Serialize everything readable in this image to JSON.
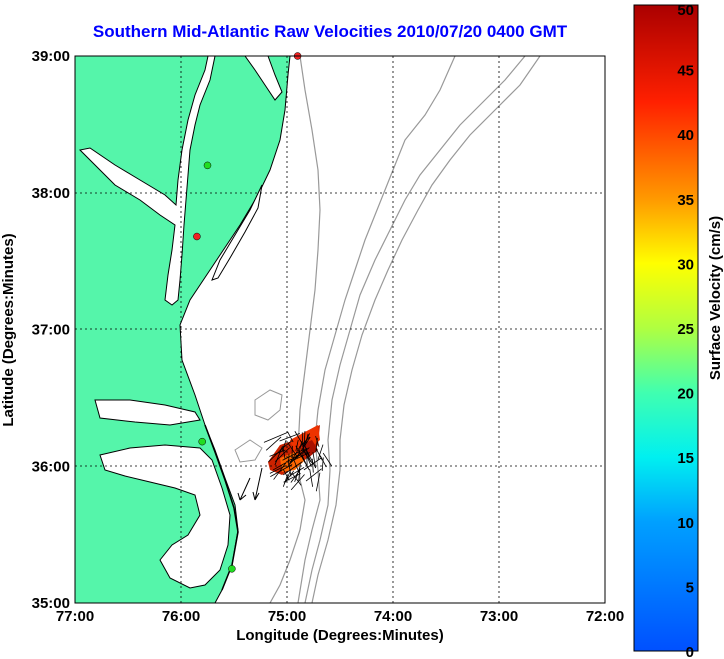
{
  "title": "Southern Mid-Atlantic Raw Velocities 2010/07/20 0400 GMT",
  "xlabel": "Longitude (Degrees:Minutes)",
  "ylabel": "Latitude (Degrees:Minutes)",
  "colorbar_label": "Surface Velocity (cm/s)",
  "x_ticks": [
    "77:00",
    "76:00",
    "75:00",
    "74:00",
    "73:00",
    "72:00"
  ],
  "y_ticks": [
    "39:00",
    "38:00",
    "37:00",
    "36:00",
    "35:00"
  ],
  "colorbar_ticks": [
    "50",
    "45",
    "40",
    "35",
    "30",
    "25",
    "20",
    "15",
    "10",
    "5",
    "0"
  ],
  "colors": {
    "land": "#55f5aa",
    "title": "#0000ff",
    "bathymetry": "#999999",
    "station_active": "#22dd22",
    "station_alert": "#ee2222"
  },
  "chart_data": {
    "type": "map",
    "xlim": [
      -77,
      -72
    ],
    "ylim": [
      35,
      39
    ],
    "colorbar_range": [
      0,
      50
    ],
    "grid": true,
    "stations": [
      {
        "lon": -74.9,
        "lat": 39.0,
        "status": "alert"
      },
      {
        "lon": -75.75,
        "lat": 38.2,
        "status": "active"
      },
      {
        "lon": -75.85,
        "lat": 37.68,
        "status": "alert"
      },
      {
        "lon": -75.8,
        "lat": 36.18,
        "status": "active"
      },
      {
        "lon": -75.52,
        "lat": 35.25,
        "status": "active"
      }
    ]
  }
}
